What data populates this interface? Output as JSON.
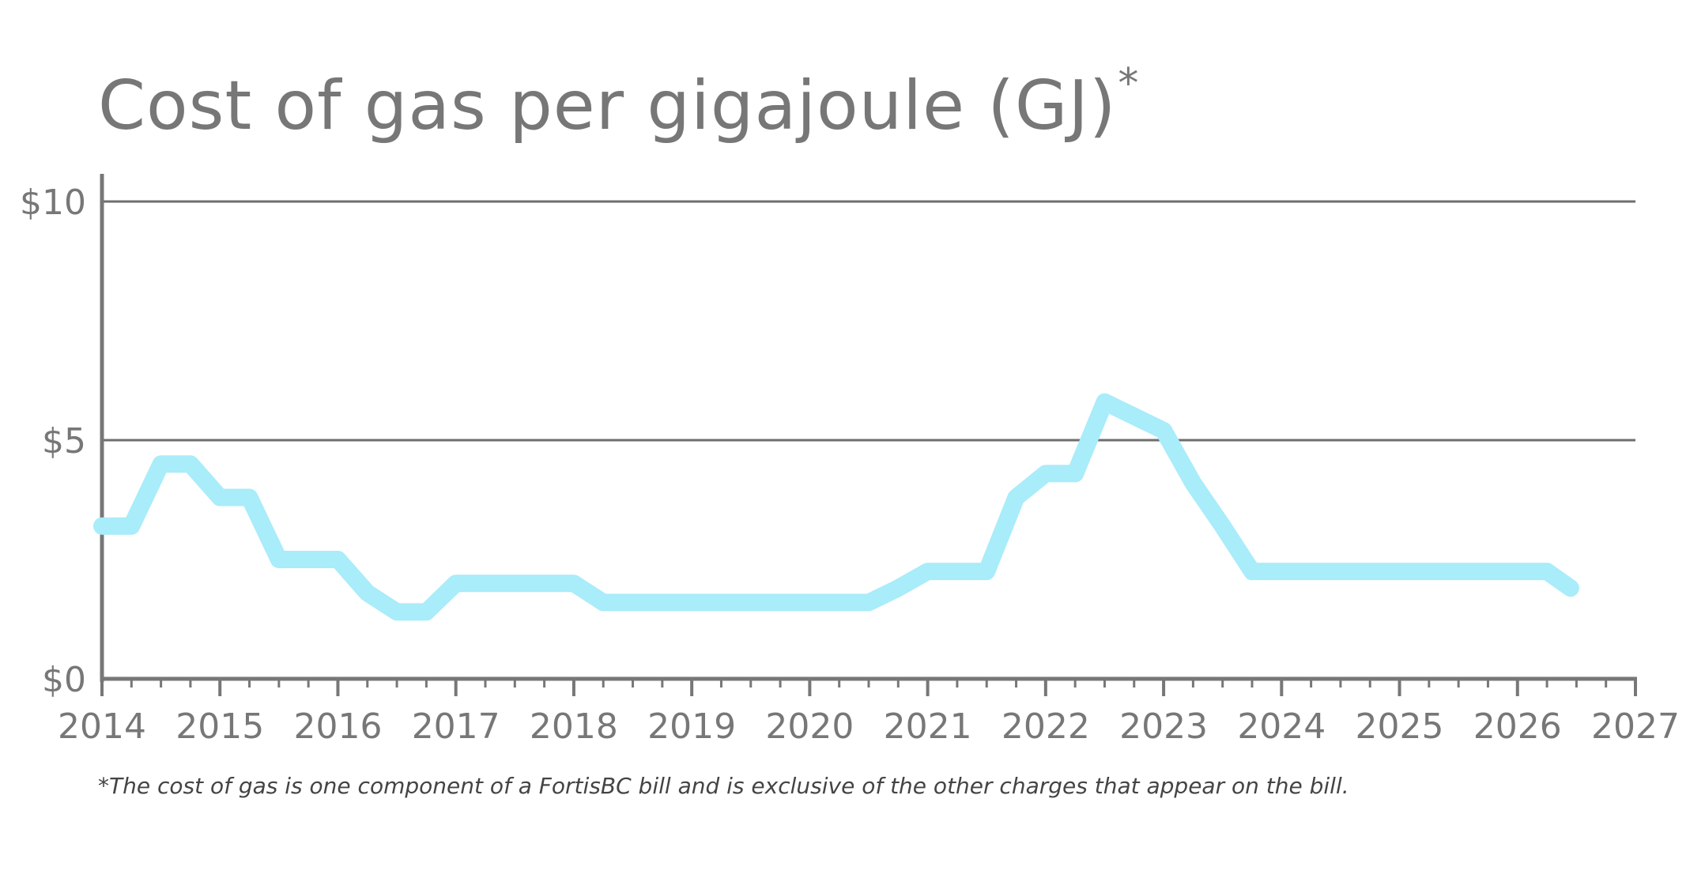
{
  "title": "Cost of gas per gigajoule (GJ)",
  "title_marker": "*",
  "footnote": "*The cost of gas is one component of a FortisBC bill and is exclusive of the other charges that appear on the bill.",
  "colors": {
    "line": "#a9ecfa",
    "axis": "#777777",
    "gridline": "#6e6e6e",
    "text": "#777777"
  },
  "chart_data": {
    "type": "line",
    "title": "Cost of gas per gigajoule (GJ)",
    "xlabel": "",
    "ylabel": "",
    "xlim": [
      2014,
      2027
    ],
    "ylim": [
      0,
      10
    ],
    "x_ticks": [
      2014,
      2015,
      2016,
      2017,
      2018,
      2019,
      2020,
      2021,
      2022,
      2023,
      2024,
      2025,
      2026,
      2027
    ],
    "x_tick_labels": [
      "2014",
      "2015",
      "2016",
      "2017",
      "2018",
      "2019",
      "2020",
      "2021",
      "2022",
      "2023",
      "2024",
      "2025",
      "2026",
      "2027"
    ],
    "y_ticks": [
      0,
      5,
      10
    ],
    "y_tick_labels": [
      "$0",
      "$5",
      "$10"
    ],
    "grid": "horizontal at $5 and $10",
    "legend": "none",
    "series": [
      {
        "x": [
          2014.0,
          2014.25,
          2014.5,
          2014.75,
          2015.0,
          2015.25,
          2015.5,
          2015.75,
          2016.0,
          2016.25,
          2016.5,
          2016.75,
          2017.0,
          2017.25,
          2017.5,
          2017.75,
          2018.0,
          2018.25,
          2018.5,
          2018.75,
          2019.0,
          2019.25,
          2019.5,
          2019.75,
          2020.0,
          2020.25,
          2020.5,
          2020.75,
          2021.0,
          2021.25,
          2021.5,
          2021.75,
          2022.0,
          2022.25,
          2022.5,
          2022.75,
          2023.0,
          2023.25,
          2023.5,
          2023.75,
          2024.0,
          2024.25,
          2024.5,
          2024.75,
          2025.0,
          2025.25,
          2025.5,
          2025.75,
          2026.0,
          2026.25,
          2026.45
        ],
        "values": [
          3.2,
          3.2,
          4.5,
          4.5,
          3.8,
          3.8,
          2.5,
          2.5,
          2.5,
          1.8,
          1.4,
          1.4,
          2.0,
          2.0,
          2.0,
          2.0,
          2.0,
          1.6,
          1.6,
          1.6,
          1.6,
          1.6,
          1.6,
          1.6,
          1.6,
          1.6,
          1.6,
          1.9,
          2.25,
          2.25,
          2.25,
          3.8,
          4.3,
          4.3,
          5.8,
          5.5,
          5.2,
          4.1,
          3.2,
          2.25,
          2.25,
          2.25,
          2.25,
          2.25,
          2.25,
          2.25,
          2.25,
          2.25,
          2.25,
          2.25,
          1.9
        ]
      }
    ]
  }
}
